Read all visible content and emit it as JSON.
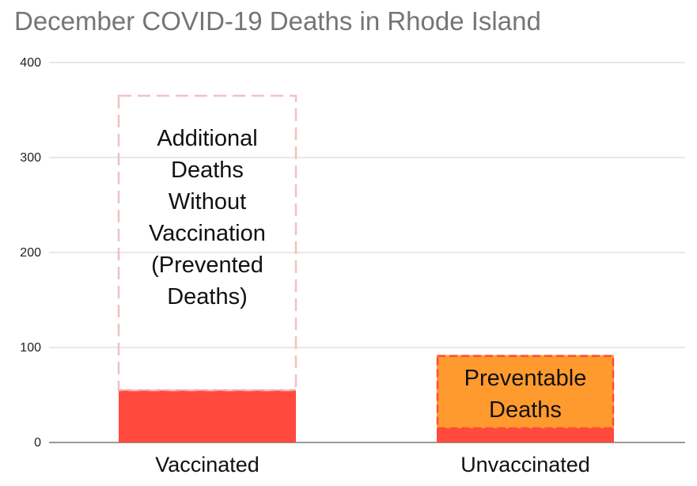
{
  "chart_data": {
    "type": "bar",
    "title": "December COVID-19 Deaths in Rhode Island",
    "categories": [
      "Vaccinated",
      "Unvaccinated"
    ],
    "ylim": [
      0,
      400
    ],
    "yticks": [
      0,
      100,
      200,
      300,
      400
    ],
    "grid": true,
    "series": [
      {
        "values": [
          55,
          15
        ],
        "color": "#ff4a3d"
      },
      {
        "values": [
          310,
          0
        ],
        "style": "dashed-outline",
        "color": "#f4c0c0"
      },
      {
        "values": [
          0,
          77
        ],
        "color": "#ff9a2e",
        "outline": "#ff4a3d"
      }
    ],
    "annotations": [
      {
        "category": "Vaccinated",
        "lines": [
          "Additional",
          "Deaths",
          "Without",
          "Vaccination",
          "(Prevented",
          "Deaths)"
        ]
      },
      {
        "category": "Unvaccinated",
        "lines": [
          "Preventable",
          "Deaths"
        ]
      }
    ]
  }
}
